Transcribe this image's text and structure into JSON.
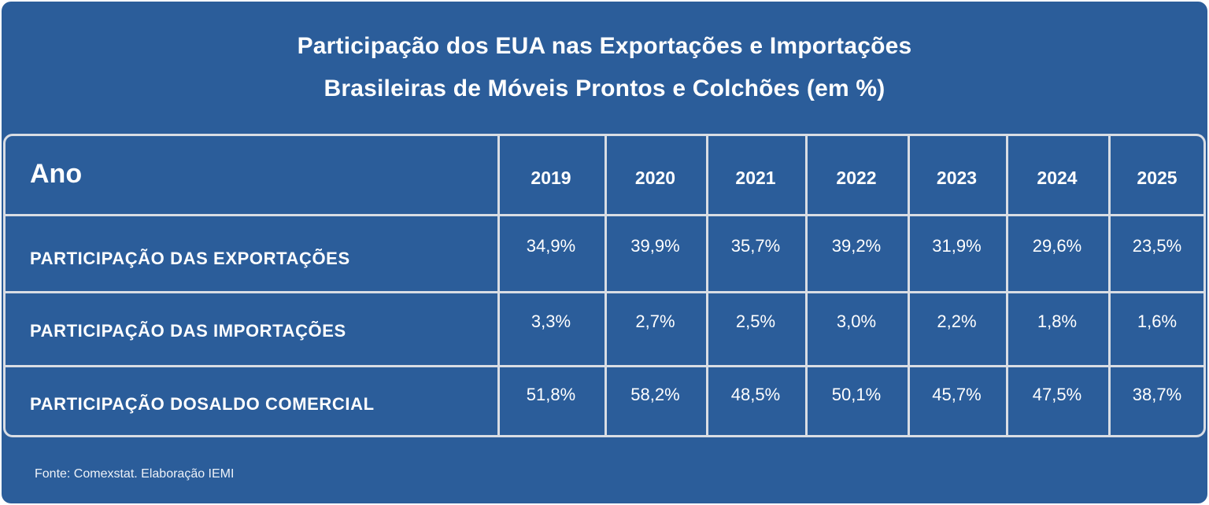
{
  "title": {
    "line1": "Participação dos EUA nas Exportações e Importações",
    "line2": "Brasileiras de Móveis Prontos e Colchões (em %)"
  },
  "source": "Fonte: Comexstat. Elaboração IEMI",
  "colors": {
    "background": "#2b5d9a",
    "grid": "#d9dde4",
    "text": "#ffffff"
  },
  "chart_data": {
    "type": "table",
    "header_label": "Ano",
    "columns": [
      "2019",
      "2020",
      "2021",
      "2022",
      "2023",
      "2024",
      "2025"
    ],
    "rows": [
      {
        "label": "PARTICIPAÇÃO DAS EXPORTAÇÕES",
        "values": [
          "34,9%",
          "39,9%",
          "35,7%",
          "39,2%",
          "31,9%",
          "29,6%",
          "23,5%"
        ]
      },
      {
        "label": "PARTICIPAÇÃO DAS IMPORTAÇÕES",
        "values": [
          "3,3%",
          "2,7%",
          "2,5%",
          "3,0%",
          "2,2%",
          "1,8%",
          "1,6%"
        ]
      },
      {
        "label": "PARTICIPAÇÃO DOSALDO COMERCIAL",
        "values": [
          "51,8%",
          "58,2%",
          "48,5%",
          "50,1%",
          "45,7%",
          "47,5%",
          "38,7%"
        ]
      }
    ]
  }
}
